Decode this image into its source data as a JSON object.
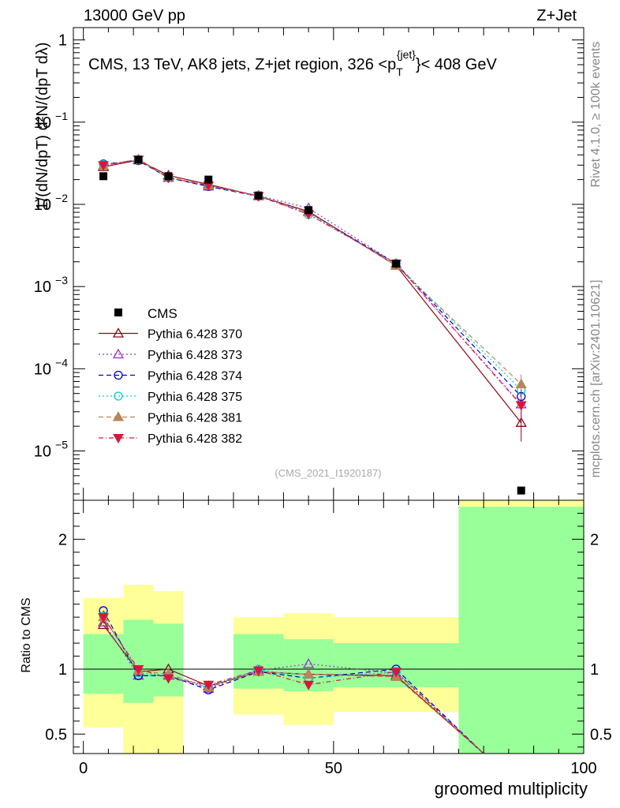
{
  "chart_data": {
    "type": "line",
    "header": {
      "left": "13000 GeV pp",
      "right": "Z+Jet"
    },
    "title": "CMS, 13 TeV, AK8 jets, Z+jet region, 326 <p",
    "title_sup": "{jet}",
    "title_sub": "T",
    "title_end": "}< 408 GeV",
    "ylabel_main": "1/(dN/dpT) d²N/(dpT dλ)",
    "ylabel_ratio": "Ratio to CMS",
    "xlabel": "groomed multiplicity",
    "side_label_top": "Rivet 4.1.0, ≥ 100k events",
    "side_label_bottom": "mcplots.cern.ch [arXiv:2401.10621]",
    "watermark": "(CMS_2021_I1920187)",
    "xlim": [
      -2,
      100
    ],
    "main_ylim_log10": [
      -5.6,
      0.15
    ],
    "ratio_ylim": [
      0.35,
      2.3
    ],
    "x_ticks": [
      0,
      50,
      100
    ],
    "main_y_ticks": [
      {
        "exp": 0,
        "label": "1"
      },
      {
        "exp": -1,
        "label": "10",
        "sup": "−1"
      },
      {
        "exp": -2,
        "label": "10",
        "sup": "−2"
      },
      {
        "exp": -3,
        "label": "10",
        "sup": "−3"
      },
      {
        "exp": -4,
        "label": "10",
        "sup": "−4"
      },
      {
        "exp": -5,
        "label": "10",
        "sup": "−5"
      }
    ],
    "ratio_y_ticks": [
      0.5,
      1,
      2
    ],
    "bins": [
      {
        "lo": 0,
        "hi": 8,
        "x": 4
      },
      {
        "lo": 8,
        "hi": 14,
        "x": 11
      },
      {
        "lo": 14,
        "hi": 20,
        "x": 17
      },
      {
        "lo": 20,
        "hi": 30,
        "x": 25
      },
      {
        "lo": 30,
        "hi": 40,
        "x": 35
      },
      {
        "lo": 40,
        "hi": 50,
        "x": 45
      },
      {
        "lo": 50,
        "hi": 75,
        "x": 62.5
      },
      {
        "lo": 75,
        "hi": 100,
        "x": 87.5
      }
    ],
    "cms": [
      0.022,
      0.035,
      0.022,
      0.02,
      0.0128,
      0.0085,
      0.0019,
      3.3e-06
    ],
    "ratio_band_yellow": [
      [
        0.55,
        1.55
      ],
      [
        0.3,
        1.65
      ],
      [
        0.35,
        1.6
      ],
      [
        null,
        null
      ],
      [
        0.65,
        1.4
      ],
      [
        0.57,
        1.43
      ],
      [
        0.67,
        1.4
      ],
      [
        0.35,
        2.3
      ]
    ],
    "ratio_band_green": [
      [
        0.81,
        1.27
      ],
      [
        0.74,
        1.38
      ],
      [
        0.79,
        1.35
      ],
      [
        null,
        null
      ],
      [
        0.85,
        1.27
      ],
      [
        0.83,
        1.23
      ],
      [
        0.86,
        1.2
      ],
      [
        0.35,
        2.25
      ]
    ],
    "series": [
      {
        "name": "Pythia 6.428 370",
        "color": "#8b0a1a",
        "marker": "triangle-open",
        "dash": "",
        "values": [
          0.0285,
          0.0345,
          0.0225,
          0.0175,
          0.0126,
          0.0082,
          0.0018,
          2.2e-05
        ],
        "ratio": [
          1.34,
          0.98,
          1.0,
          0.87,
          0.98,
          0.96,
          0.95,
          null
        ],
        "errors": [
          0,
          0,
          0,
          0,
          0,
          0,
          0,
          1.5e-05
        ]
      },
      {
        "name": "Pythia 6.428 373",
        "color": "#9932cc",
        "marker": "triangle-open",
        "dash": "2,3",
        "values": [
          0.0295,
          0.035,
          0.021,
          0.0165,
          0.0128,
          0.009,
          0.0019,
          3.7e-05
        ],
        "ratio": [
          1.36,
          0.95,
          0.95,
          0.85,
          0.99,
          1.04,
          0.97,
          null
        ],
        "errors": [
          0,
          0,
          0,
          0,
          0,
          0,
          0,
          0
        ]
      },
      {
        "name": "Pythia 6.428 374",
        "color": "#0000cd",
        "marker": "circle-open",
        "dash": "6,4",
        "values": [
          0.031,
          0.034,
          0.021,
          0.0165,
          0.0125,
          0.008,
          0.0019,
          4.6e-05
        ],
        "ratio": [
          1.45,
          0.95,
          0.95,
          0.84,
          0.98,
          0.93,
          1.0,
          null
        ],
        "errors": [
          0,
          0,
          0,
          0,
          0,
          0,
          0,
          0
        ]
      },
      {
        "name": "Pythia 6.428 375",
        "color": "#00ced1",
        "marker": "circle-open",
        "dash": "2,3",
        "values": [
          0.0305,
          0.0345,
          0.021,
          0.0168,
          0.0128,
          0.0075,
          0.0019,
          5.5e-05
        ],
        "ratio": [
          1.41,
          0.97,
          0.95,
          0.86,
          1.0,
          0.93,
          0.98,
          null
        ],
        "errors": [
          0,
          0,
          0,
          0,
          0,
          0,
          0,
          0
        ]
      },
      {
        "name": "Pythia 6.428 381",
        "color": "#b8865a",
        "marker": "triangle-filled",
        "dash": "6,4",
        "values": [
          0.0295,
          0.0355,
          0.0215,
          0.017,
          0.0125,
          0.008,
          0.0018,
          6.5e-05
        ],
        "ratio": [
          1.4,
          0.99,
          0.96,
          0.86,
          0.98,
          0.96,
          0.94,
          null
        ],
        "errors": [
          0,
          0,
          0,
          0,
          0,
          0,
          0,
          2e-05
        ]
      },
      {
        "name": "Pythia 6.428 382",
        "color": "#dc143c",
        "marker": "triangle-down-filled",
        "dash": "6,3,1,3",
        "values": [
          0.03,
          0.035,
          0.021,
          0.017,
          0.0126,
          0.0076,
          0.0019,
          3.6e-05
        ],
        "ratio": [
          1.4,
          1.0,
          0.93,
          0.88,
          0.99,
          0.88,
          0.98,
          null
        ],
        "errors": [
          0,
          0,
          0,
          0,
          0,
          0,
          0,
          2e-05
        ]
      }
    ],
    "legend_cms_label": "CMS"
  }
}
